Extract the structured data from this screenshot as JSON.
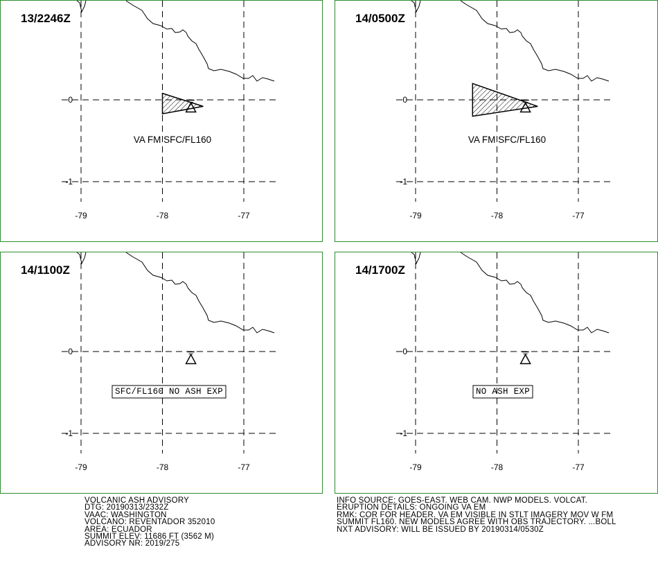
{
  "panels": [
    {
      "time": "13/2246Z",
      "label": "VA FM SFC/FL160",
      "boxed": false,
      "ash_area": [
        [
          -78.0,
          0.08
        ],
        [
          -77.5,
          -0.08
        ],
        [
          -78.0,
          -0.17
        ]
      ]
    },
    {
      "time": "14/0500Z",
      "label": "VA FM SFC/FL160",
      "boxed": false,
      "ash_area": [
        [
          -78.3,
          0.2
        ],
        [
          -77.5,
          -0.08
        ],
        [
          -78.3,
          -0.2
        ]
      ]
    },
    {
      "time": "14/1100Z",
      "label": "SFC/FL160 NO ASH EXP",
      "boxed": true,
      "ash_area": []
    },
    {
      "time": "14/1700Z",
      "label": "NO ASH EXP",
      "boxed": true,
      "ash_area": []
    }
  ],
  "map": {
    "lon_ticks": [
      "-79",
      "-78",
      "-77"
    ],
    "lat_ticks": [
      "0",
      "-1"
    ],
    "volcano": {
      "name": "REVENTADOR",
      "lon": -77.65,
      "lat": -0.08
    }
  },
  "advisory": {
    "left": [
      "VOLCANIC ASH ADVISORY",
      "DTG: 20190313/2332Z",
      "VAAC: WASHINGTON",
      "VOLCANO: REVENTADOR 352010",
      "AREA: ECUADOR",
      "SUMMIT ELEV: 11686 FT (3562 M)",
      "ADVISORY NR: 2019/275"
    ],
    "right": [
      "INFO SOURCE: GOES-EAST. WEB CAM. NWP MODELS. VOLCAT.",
      "ERUPTION DETAILS: ONGOING VA EM",
      "RMK: COR FOR HEADER. VA EM VISIBLE IN STLT IMAGERY MOV W FM",
      "SUMMIT FL160. NEW MODELS AGREE WITH OBS TRAJECTORY. ...BOLL",
      "NXT ADVISORY: WILL BE ISSUED BY 20190314/0530Z"
    ]
  },
  "colors": {
    "border": "#2e8b2e",
    "lines": "#000000"
  }
}
